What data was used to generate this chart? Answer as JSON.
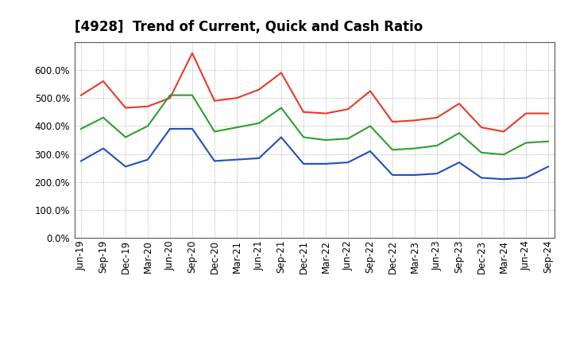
{
  "title": "[4928]  Trend of Current, Quick and Cash Ratio",
  "x_labels": [
    "Jun-19",
    "Sep-19",
    "Dec-19",
    "Mar-20",
    "Jun-20",
    "Sep-20",
    "Dec-20",
    "Mar-21",
    "Jun-21",
    "Sep-21",
    "Dec-21",
    "Mar-22",
    "Jun-22",
    "Sep-22",
    "Dec-22",
    "Mar-23",
    "Jun-23",
    "Sep-23",
    "Dec-23",
    "Mar-24",
    "Jun-24",
    "Sep-24"
  ],
  "current_ratio": [
    510,
    560,
    465,
    470,
    500,
    660,
    490,
    500,
    530,
    590,
    450,
    445,
    460,
    525,
    415,
    420,
    430,
    480,
    395,
    380,
    445,
    445
  ],
  "quick_ratio": [
    390,
    430,
    360,
    400,
    510,
    510,
    380,
    395,
    410,
    465,
    360,
    350,
    355,
    400,
    315,
    320,
    330,
    375,
    305,
    298,
    340,
    345
  ],
  "cash_ratio": [
    275,
    320,
    255,
    280,
    390,
    390,
    275,
    280,
    285,
    360,
    265,
    265,
    270,
    310,
    225,
    225,
    230,
    270,
    215,
    210,
    215,
    255
  ],
  "ylim": [
    0,
    700
  ],
  "yticks": [
    0,
    100,
    200,
    300,
    400,
    500,
    600
  ],
  "current_color": "#e8392a",
  "quick_color": "#2ca02c",
  "cash_color": "#1f4fbf",
  "background_color": "#ffffff",
  "grid_color": "#999999",
  "title_fontsize": 12,
  "tick_fontsize": 8.5,
  "legend_fontsize": 9.5
}
